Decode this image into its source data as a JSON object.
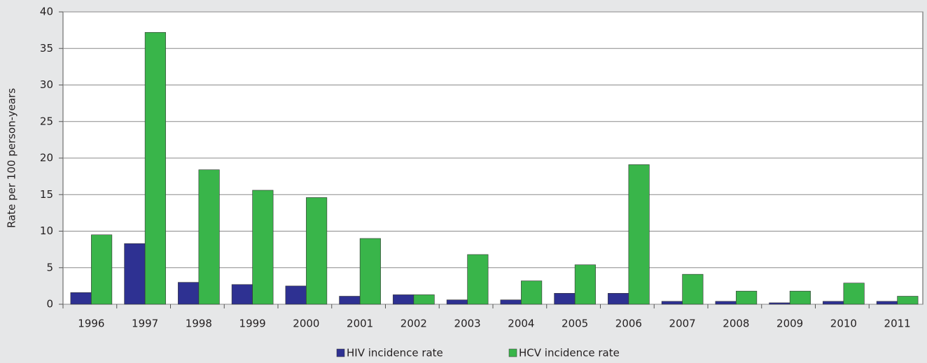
{
  "chart_data": {
    "type": "bar",
    "y_label": "Rate per 100 person-years",
    "categories": [
      "1996",
      "1997",
      "1998",
      "1999",
      "2000",
      "2001",
      "2002",
      "2003",
      "2004",
      "2005",
      "2006",
      "2007",
      "2008",
      "2009",
      "2010",
      "2011"
    ],
    "series": [
      {
        "name": "HIV incidence rate",
        "color": "#2e3192",
        "values": [
          1.6,
          8.3,
          3.0,
          2.7,
          2.5,
          1.1,
          1.3,
          0.6,
          0.6,
          1.5,
          1.5,
          0.4,
          0.4,
          0.2,
          0.4,
          0.4
        ]
      },
      {
        "name": "HCV incidence rate",
        "color": "#39b54a",
        "values": [
          9.5,
          37.2,
          18.4,
          15.6,
          14.6,
          9.0,
          1.3,
          6.8,
          3.2,
          5.4,
          19.1,
          4.1,
          1.8,
          1.8,
          2.9,
          1.1
        ]
      }
    ],
    "ylim": [
      0,
      40
    ],
    "yticks": [
      0,
      5,
      10,
      15,
      20,
      25,
      30,
      35,
      40
    ],
    "grid": true,
    "legend": "bottom"
  }
}
